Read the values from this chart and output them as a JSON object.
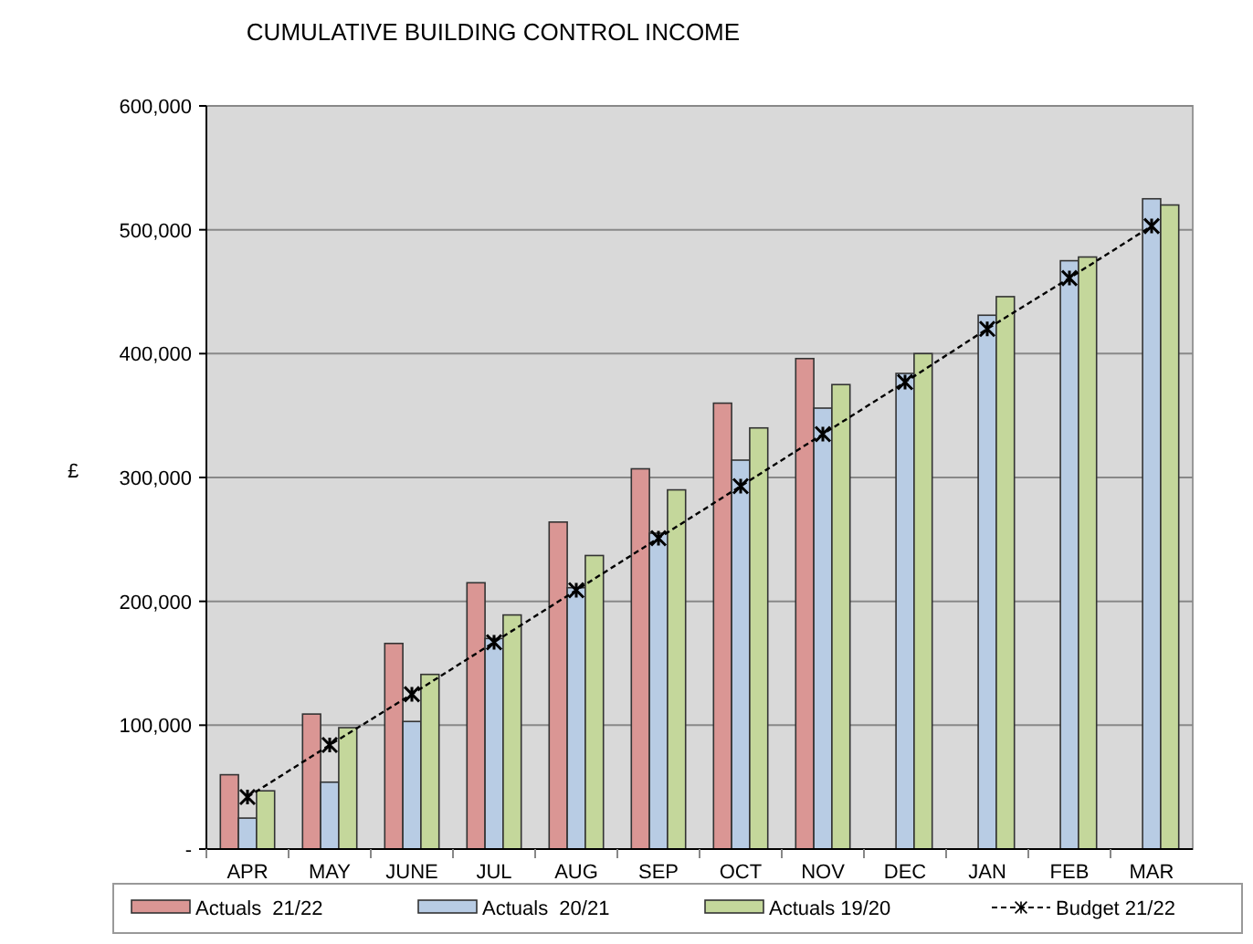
{
  "chart_data": {
    "type": "bar",
    "title": "CUMULATIVE BUILDING CONTROL INCOME",
    "ylabel": "£",
    "categories": [
      "APR",
      "MAY",
      "JUNE",
      "JUL",
      "AUG",
      "SEP",
      "OCT",
      "NOV",
      "DEC",
      "JAN",
      "FEB",
      "MAR"
    ],
    "series": [
      {
        "name": "Actuals  21/22",
        "color": "#da9694",
        "values": [
          60000,
          109000,
          166000,
          215000,
          264000,
          307000,
          360000,
          396000,
          null,
          null,
          null,
          null
        ]
      },
      {
        "name": "Actuals  20/21",
        "color": "#b8cce4",
        "values": [
          25000,
          54000,
          103000,
          170000,
          211000,
          255000,
          314000,
          356000,
          384000,
          431000,
          475000,
          525000
        ]
      },
      {
        "name": "Actuals 19/20",
        "color": "#c4d79b",
        "values": [
          47000,
          98000,
          141000,
          189000,
          237000,
          290000,
          340000,
          375000,
          400000,
          446000,
          478000,
          520000
        ]
      },
      {
        "name": "Budget 21/22",
        "type": "line",
        "color": "#000000",
        "line_style": "dashed",
        "marker": "cross",
        "values": [
          42000,
          84000,
          125000,
          167000,
          209000,
          251000,
          293000,
          335000,
          377000,
          420000,
          461000,
          503000
        ]
      }
    ],
    "ylim": [
      0,
      600000
    ],
    "yticks": [
      {
        "value": 0,
        "label": "-"
      },
      {
        "value": 100000,
        "label": "100,000"
      },
      {
        "value": 200000,
        "label": "200,000"
      },
      {
        "value": 300000,
        "label": "300,000"
      },
      {
        "value": 400000,
        "label": "400,000"
      },
      {
        "value": 500000,
        "label": "500,000"
      },
      {
        "value": 600000,
        "label": "600,000"
      }
    ],
    "grid": "y",
    "legend": "bottom"
  }
}
